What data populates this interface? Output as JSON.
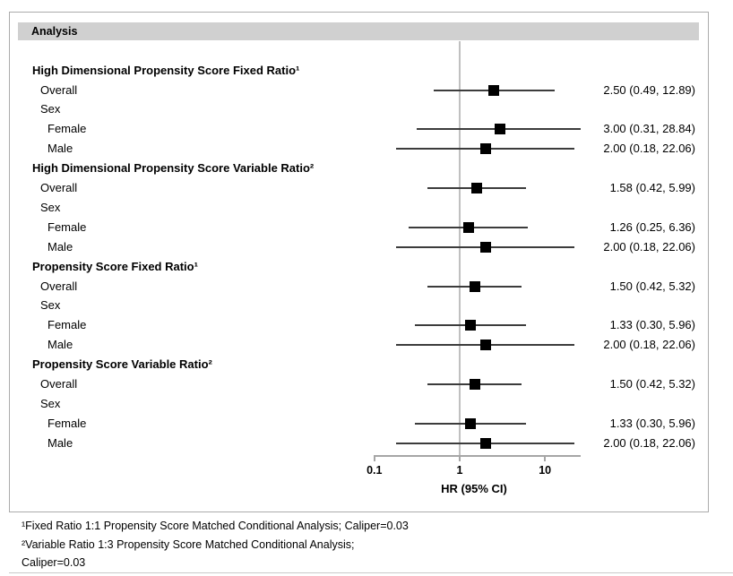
{
  "header": {
    "title": "Analysis"
  },
  "chart_data": {
    "type": "forest",
    "scale": "log10",
    "xlabel": "HR (95% CI)",
    "x_ticks": [
      0.1,
      1,
      10
    ],
    "x_tick_labels": [
      "0.1",
      "1",
      "10"
    ],
    "xlim": [
      0.1,
      26
    ],
    "reference_line": 1,
    "grid": false,
    "groups": [
      {
        "label": "High Dimensional Propensity Score Fixed Ratio¹",
        "rows": [
          {
            "label": "Overall",
            "indent": 1,
            "hr": 2.5,
            "lo": 0.49,
            "hi": 12.89,
            "text": "2.50 (0.49, 12.89)"
          },
          {
            "label": "Sex",
            "indent": 1
          },
          {
            "label": "Female",
            "indent": 2,
            "hr": 3.0,
            "lo": 0.31,
            "hi": 28.84,
            "text": "3.00 (0.31, 28.84)"
          },
          {
            "label": "Male",
            "indent": 2,
            "hr": 2.0,
            "lo": 0.18,
            "hi": 22.06,
            "text": "2.00 (0.18, 22.06)"
          }
        ]
      },
      {
        "label": "High Dimensional Propensity Score Variable Ratio²",
        "rows": [
          {
            "label": "Overall",
            "indent": 1,
            "hr": 1.58,
            "lo": 0.42,
            "hi": 5.99,
            "text": "1.58 (0.42, 5.99)"
          },
          {
            "label": "Sex",
            "indent": 1
          },
          {
            "label": "Female",
            "indent": 2,
            "hr": 1.26,
            "lo": 0.25,
            "hi": 6.36,
            "text": "1.26 (0.25, 6.36)"
          },
          {
            "label": "Male",
            "indent": 2,
            "hr": 2.0,
            "lo": 0.18,
            "hi": 22.06,
            "text": "2.00 (0.18, 22.06)"
          }
        ]
      },
      {
        "label": "Propensity Score Fixed Ratio¹",
        "rows": [
          {
            "label": "Overall",
            "indent": 1,
            "hr": 1.5,
            "lo": 0.42,
            "hi": 5.32,
            "text": "1.50 (0.42, 5.32)"
          },
          {
            "label": "Sex",
            "indent": 1
          },
          {
            "label": "Female",
            "indent": 2,
            "hr": 1.33,
            "lo": 0.3,
            "hi": 5.96,
            "text": "1.33 (0.30, 5.96)"
          },
          {
            "label": "Male",
            "indent": 2,
            "hr": 2.0,
            "lo": 0.18,
            "hi": 22.06,
            "text": "2.00 (0.18, 22.06)"
          }
        ]
      },
      {
        "label": "Propensity Score Variable Ratio²",
        "rows": [
          {
            "label": "Overall",
            "indent": 1,
            "hr": 1.5,
            "lo": 0.42,
            "hi": 5.32,
            "text": "1.50 (0.42, 5.32)"
          },
          {
            "label": "Sex",
            "indent": 1
          },
          {
            "label": "Female",
            "indent": 2,
            "hr": 1.33,
            "lo": 0.3,
            "hi": 5.96,
            "text": "1.33 (0.30, 5.96)"
          },
          {
            "label": "Male",
            "indent": 2,
            "hr": 2.0,
            "lo": 0.18,
            "hi": 22.06,
            "text": "2.00 (0.18, 22.06)"
          }
        ]
      }
    ]
  },
  "footnotes": [
    "¹Fixed Ratio 1:1 Propensity Score Matched Conditional Analysis; Caliper=0.03",
    "²Variable Ratio 1:3 Propensity Score Matched Conditional Analysis;",
    "Caliper=0.03"
  ],
  "colors": {
    "header_bar": "#d0d0d0",
    "box_border": "#ababab",
    "axis": "#a6a6a6",
    "reference_line": "#c0c0c0",
    "ci_line": "#3c3c3c",
    "marker": "#000000",
    "text": "#000000",
    "bottom_rule": "#c9c9c9"
  }
}
